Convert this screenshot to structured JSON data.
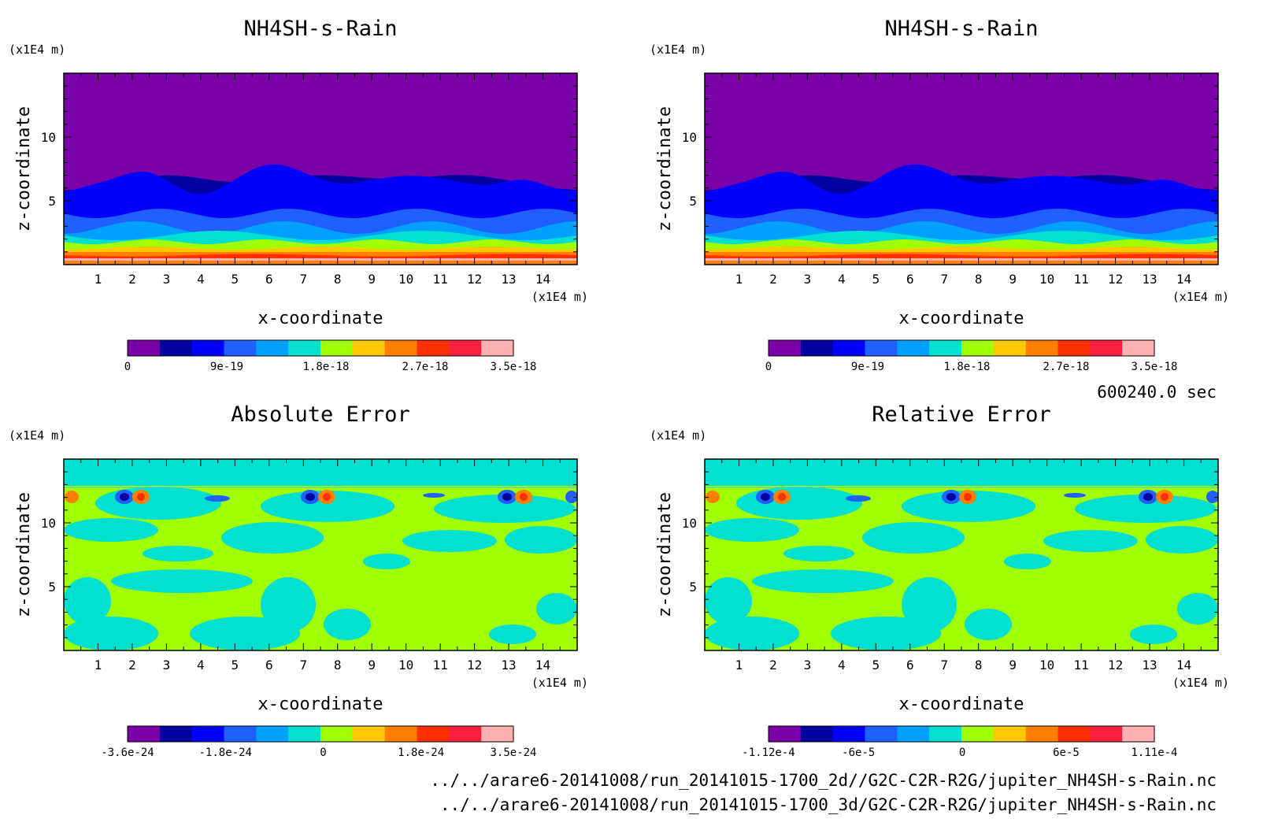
{
  "figure": {
    "time_label": "600240.0 sec",
    "file_lines": [
      "../../arare6-20141008/run_20141015-1700_2d//G2C-C2R-R2G/jupiter_NH4SH-s-Rain.nc",
      "../../arare6-20141008/run_20141015-1700_3d/G2C-C2R-R2G/jupiter_NH4SH-s-Rain.nc"
    ]
  },
  "chart_data": [
    {
      "type": "heatmap",
      "title": "NH4SH-s-Rain",
      "xlabel": "x-coordinate",
      "ylabel": "z-coordinate",
      "x_unit": "(x1E4 m)",
      "y_unit": "(x1E4 m)",
      "xlim": [
        0,
        15
      ],
      "ylim": [
        0,
        15
      ],
      "x_ticks": [
        "1",
        "2",
        "3",
        "4",
        "5",
        "6",
        "7",
        "8",
        "9",
        "10",
        "11",
        "12",
        "13",
        "14"
      ],
      "y_ticks": [
        "5",
        "10"
      ],
      "colorbar": {
        "labels": [
          {
            "v": 0,
            "t": "0"
          },
          {
            "v": 9e-19,
            "t": "9e-19"
          },
          {
            "v": 1.8e-18,
            "t": "1.8e-18"
          },
          {
            "v": 2.7e-18,
            "t": "2.7e-18"
          },
          {
            "v": 3.5e-18,
            "t": "3.5e-18"
          }
        ],
        "min": 0,
        "max": 3.5e-18,
        "colors": [
          "#7b00a8",
          "#0000a0",
          "#0000ff",
          "#1f60ff",
          "#00a0ff",
          "#00e0d0",
          "#a0ff00",
          "#ffc800",
          "#ff8000",
          "#ff3000",
          "#ff2040",
          "#ffb0b0"
        ]
      },
      "field": "stratified"
    },
    {
      "type": "heatmap",
      "title": "NH4SH-s-Rain",
      "xlabel": "x-coordinate",
      "ylabel": "z-coordinate",
      "x_unit": "(x1E4 m)",
      "y_unit": "(x1E4 m)",
      "xlim": [
        0,
        15
      ],
      "ylim": [
        0,
        15
      ],
      "x_ticks": [
        "1",
        "2",
        "3",
        "4",
        "5",
        "6",
        "7",
        "8",
        "9",
        "10",
        "11",
        "12",
        "13",
        "14"
      ],
      "y_ticks": [
        "5",
        "10"
      ],
      "colorbar": {
        "labels": [
          {
            "v": 0,
            "t": "0"
          },
          {
            "v": 9e-19,
            "t": "9e-19"
          },
          {
            "v": 1.8e-18,
            "t": "1.8e-18"
          },
          {
            "v": 2.7e-18,
            "t": "2.7e-18"
          },
          {
            "v": 3.5e-18,
            "t": "3.5e-18"
          }
        ],
        "min": 0,
        "max": 3.5e-18,
        "colors": [
          "#7b00a8",
          "#0000a0",
          "#0000ff",
          "#1f60ff",
          "#00a0ff",
          "#00e0d0",
          "#a0ff00",
          "#ffc800",
          "#ff8000",
          "#ff3000",
          "#ff2040",
          "#ffb0b0"
        ]
      },
      "field": "stratified"
    },
    {
      "type": "heatmap",
      "title": "Absolute Error",
      "xlabel": "x-coordinate",
      "ylabel": "z-coordinate",
      "x_unit": "(x1E4 m)",
      "y_unit": "(x1E4 m)",
      "xlim": [
        0,
        15
      ],
      "ylim": [
        0,
        15
      ],
      "x_ticks": [
        "1",
        "2",
        "3",
        "4",
        "5",
        "6",
        "7",
        "8",
        "9",
        "10",
        "11",
        "12",
        "13",
        "14"
      ],
      "y_ticks": [
        "5",
        "10"
      ],
      "colorbar": {
        "labels": [
          {
            "v": -3.6e-24,
            "t": "-3.6e-24"
          },
          {
            "v": -1.8e-24,
            "t": "-1.8e-24"
          },
          {
            "v": 0,
            "t": "0"
          },
          {
            "v": 1.8e-24,
            "t": "1.8e-24"
          },
          {
            "v": 3.5e-24,
            "t": "3.5e-24"
          }
        ],
        "min": -3.6e-24,
        "max": 3.5e-24,
        "colors": [
          "#7b00a8",
          "#0000a0",
          "#0000ff",
          "#1f60ff",
          "#00a0ff",
          "#00e0d0",
          "#a0ff00",
          "#ffc800",
          "#ff8000",
          "#ff3000",
          "#ff2040",
          "#ffb0b0"
        ]
      },
      "field": "error"
    },
    {
      "type": "heatmap",
      "title": "Relative Error",
      "xlabel": "x-coordinate",
      "ylabel": "z-coordinate",
      "x_unit": "(x1E4 m)",
      "y_unit": "(x1E4 m)",
      "xlim": [
        0,
        15
      ],
      "ylim": [
        0,
        15
      ],
      "x_ticks": [
        "1",
        "2",
        "3",
        "4",
        "5",
        "6",
        "7",
        "8",
        "9",
        "10",
        "11",
        "12",
        "13",
        "14"
      ],
      "y_ticks": [
        "5",
        "10"
      ],
      "colorbar": {
        "labels": [
          {
            "v": -0.000112,
            "t": "-1.12e-4"
          },
          {
            "v": -6e-05,
            "t": "-6e-5"
          },
          {
            "v": 0,
            "t": "0"
          },
          {
            "v": 6e-05,
            "t": "6e-5"
          },
          {
            "v": 0.000111,
            "t": "1.11e-4"
          }
        ],
        "min": -0.000112,
        "max": 0.000111,
        "colors": [
          "#7b00a8",
          "#0000a0",
          "#0000ff",
          "#1f60ff",
          "#00a0ff",
          "#00e0d0",
          "#a0ff00",
          "#ffc800",
          "#ff8000",
          "#ff3000",
          "#ff2040",
          "#ffb0b0"
        ]
      },
      "field": "error"
    }
  ]
}
